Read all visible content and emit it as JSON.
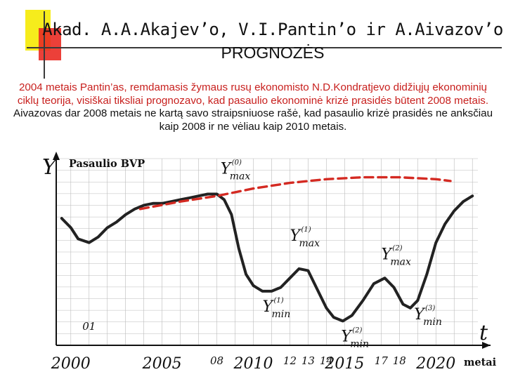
{
  "slide": {
    "title_line1": "Akad. A.A.Akajev’o, V.I.Pantin’o  ir A.Aivazov’o",
    "title_line2": "PROGNOZĖS",
    "paragraph_red": "2004 metais Pantin’as, remdamasis žymaus rusų ekonomisto N.D.Kondratjevo didžiųjų ekonominių ciklų teorija, visiškai tiksliai prognozavo, kad pasaulio ekonominė krizė prasidės būtent 2008 metais.",
    "paragraph_black": " Aivazovas dar 2008 metais ne kartą savo straipsniuose rašė, kad pasaulio krizė prasidės ne anksčiau kaip 2008 ir ne vėliau kaip 2010 metais."
  },
  "colors": {
    "accent_yellow": "#f6ec1c",
    "accent_red": "#ea2b24",
    "text_red": "#c8201e",
    "gdp_curve": "#222222",
    "trend_dashed": "#d42a22",
    "grid": "#bbbbbb"
  },
  "chart_data": {
    "type": "line",
    "y_axis_symbol": "Y",
    "x_axis_symbol": "t",
    "series_label": "Pasaulio BVP",
    "x_unit": "metai",
    "grid": true,
    "y_ticks_labeled": false,
    "x_ticks": [
      {
        "x": 2000,
        "label": "2000"
      },
      {
        "x": 2001,
        "label": "01"
      },
      {
        "x": 2005,
        "label": "2005"
      },
      {
        "x": 2008,
        "label": "08"
      },
      {
        "x": 2010,
        "label": "2010"
      },
      {
        "x": 2012,
        "label": "12"
      },
      {
        "x": 2013,
        "label": "13"
      },
      {
        "x": 2014,
        "label": "14"
      },
      {
        "x": 2015,
        "label": "2015"
      },
      {
        "x": 2017,
        "label": "17"
      },
      {
        "x": 2018,
        "label": "18"
      },
      {
        "x": 2020,
        "label": "2020"
      }
    ],
    "xlim": [
      1999.2,
      2022.3
    ],
    "ylim": [
      0,
      100
    ],
    "series": [
      {
        "points": [
          [
            1999.5,
            68
          ],
          [
            2000.0,
            63
          ],
          [
            2000.4,
            57
          ],
          [
            2001.0,
            55
          ],
          [
            2001.5,
            58
          ],
          [
            2002.0,
            63
          ],
          [
            2002.5,
            66
          ],
          [
            2003.0,
            70
          ],
          [
            2003.5,
            73
          ],
          [
            2004.0,
            75
          ],
          [
            2004.5,
            76
          ],
          [
            2005.0,
            76
          ],
          [
            2005.5,
            77
          ],
          [
            2006.0,
            78
          ],
          [
            2006.5,
            79
          ],
          [
            2007.0,
            80
          ],
          [
            2007.5,
            81
          ],
          [
            2008.0,
            81
          ],
          [
            2008.4,
            78
          ],
          [
            2008.8,
            70
          ],
          [
            2009.2,
            52
          ],
          [
            2009.6,
            38
          ],
          [
            2010.0,
            32
          ],
          [
            2010.5,
            29
          ],
          [
            2011.0,
            29
          ],
          [
            2011.5,
            31
          ],
          [
            2012.0,
            36
          ],
          [
            2012.5,
            41
          ],
          [
            2013.0,
            40
          ],
          [
            2013.5,
            30
          ],
          [
            2014.0,
            20
          ],
          [
            2014.4,
            15
          ],
          [
            2014.9,
            13
          ],
          [
            2015.4,
            16
          ],
          [
            2016.0,
            24
          ],
          [
            2016.6,
            33
          ],
          [
            2017.2,
            36
          ],
          [
            2017.7,
            31
          ],
          [
            2018.2,
            22
          ],
          [
            2018.6,
            20
          ],
          [
            2019.0,
            24
          ],
          [
            2019.5,
            38
          ],
          [
            2020.0,
            55
          ],
          [
            2020.5,
            65
          ],
          [
            2021.0,
            72
          ],
          [
            2021.5,
            77
          ],
          [
            2022.0,
            80
          ]
        ]
      },
      {
        "style": "dashed",
        "points": [
          [
            2003.8,
            73
          ],
          [
            2006.0,
            77
          ],
          [
            2008.0,
            80
          ],
          [
            2010.0,
            84
          ],
          [
            2012.0,
            87
          ],
          [
            2014.0,
            89
          ],
          [
            2016.0,
            90
          ],
          [
            2018.0,
            90
          ],
          [
            2020.0,
            89
          ],
          [
            2020.8,
            88
          ]
        ]
      }
    ],
    "annotations": [
      {
        "base": "Y",
        "sub": "max",
        "sup": "(0)",
        "x": 2008.2,
        "y": 92
      },
      {
        "base": "Y",
        "sub": "max",
        "sup": "(1)",
        "x": 2012.0,
        "y": 56
      },
      {
        "base": "Y",
        "sub": "max",
        "sup": "(2)",
        "x": 2017.0,
        "y": 46
      },
      {
        "base": "Y",
        "sub": "min",
        "sup": "(1)",
        "x": 2010.5,
        "y": 18
      },
      {
        "base": "Y",
        "sub": "min",
        "sup": "(2)",
        "x": 2014.8,
        "y": 2
      },
      {
        "base": "Y",
        "sub": "min",
        "sup": "(3)",
        "x": 2018.8,
        "y": 14
      }
    ]
  }
}
